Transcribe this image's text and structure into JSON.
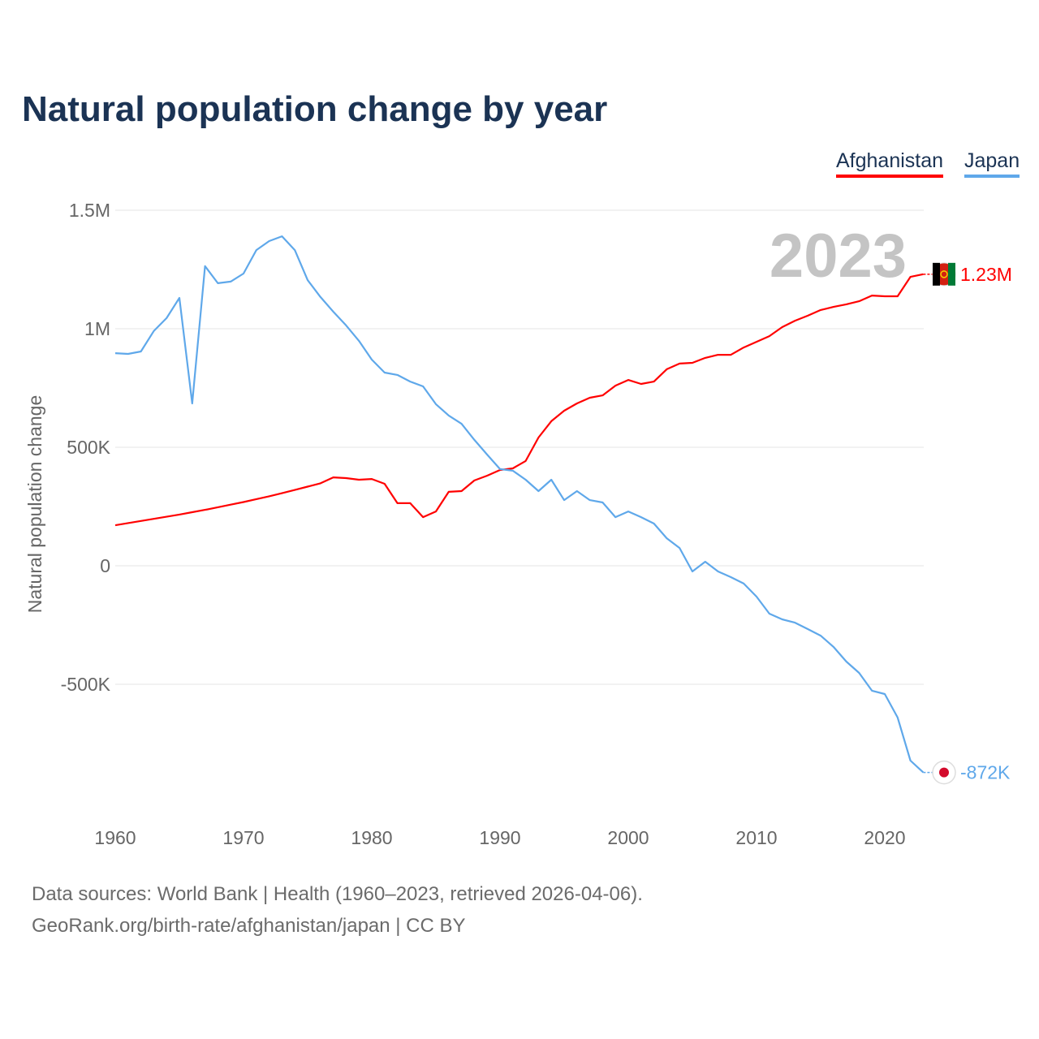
{
  "chart_data": {
    "type": "line",
    "title": "Natural population change by year",
    "xlabel": "",
    "ylabel": "Natural population change",
    "xlim": [
      1960,
      2023
    ],
    "ylim": [
      -1000000,
      1500000
    ],
    "x_ticks": [
      1960,
      1970,
      1980,
      1990,
      2000,
      2010,
      2020
    ],
    "y_ticks": [
      -500000,
      0,
      500000,
      1000000,
      1500000
    ],
    "y_tick_labels": [
      "-500K",
      "0",
      "500K",
      "1M",
      "1.5M"
    ],
    "grid": true,
    "legend_position": "top-right",
    "year_label": "2023",
    "x": [
      1960,
      1961,
      1962,
      1963,
      1964,
      1965,
      1966,
      1967,
      1968,
      1969,
      1970,
      1971,
      1972,
      1973,
      1974,
      1975,
      1976,
      1977,
      1978,
      1979,
      1980,
      1981,
      1982,
      1983,
      1984,
      1985,
      1986,
      1987,
      1988,
      1989,
      1990,
      1991,
      1992,
      1993,
      1994,
      1995,
      1996,
      1997,
      1998,
      1999,
      2000,
      2001,
      2002,
      2003,
      2004,
      2005,
      2006,
      2007,
      2008,
      2009,
      2010,
      2011,
      2012,
      2013,
      2014,
      2015,
      2016,
      2017,
      2018,
      2019,
      2020,
      2021,
      2022,
      2023
    ],
    "series": [
      {
        "name": "Afghanistan",
        "color": "#ff0000",
        "end_label": "1.23M",
        "values": [
          171000,
          180000,
          189000,
          198000,
          207000,
          216000,
          226000,
          236000,
          247000,
          258000,
          269000,
          281000,
          293000,
          306000,
          320000,
          334000,
          348000,
          373000,
          370000,
          363000,
          366000,
          346000,
          264000,
          264000,
          205000,
          229000,
          312000,
          315000,
          360000,
          380000,
          404000,
          411000,
          442000,
          541000,
          610000,
          654000,
          685000,
          709000,
          719000,
          760000,
          784000,
          767000,
          777000,
          829000,
          853000,
          856000,
          877000,
          890000,
          890000,
          921000,
          945000,
          969000,
          1007000,
          1034000,
          1055000,
          1079000,
          1092000,
          1103000,
          1116000,
          1140000,
          1137000,
          1137000,
          1219000,
          1230000
        ]
      },
      {
        "name": "Japan",
        "color": "#5fa8ea",
        "end_label": "-872K",
        "values": [
          897000,
          894000,
          904000,
          990000,
          1045000,
          1130000,
          685000,
          1264000,
          1192000,
          1199000,
          1233000,
          1332000,
          1370000,
          1390000,
          1332000,
          1205000,
          1134000,
          1072000,
          1014000,
          949000,
          870000,
          815000,
          805000,
          777000,
          757000,
          682000,
          634000,
          599000,
          531000,
          469000,
          408000,
          401000,
          363000,
          315000,
          363000,
          277000,
          315000,
          277000,
          267000,
          205000,
          229000,
          205000,
          178000,
          116000,
          75000,
          -24000,
          17000,
          -24000,
          -48000,
          -75000,
          -130000,
          -202000,
          -226000,
          -240000,
          -267000,
          -295000,
          -342000,
          -404000,
          -452000,
          -527000,
          -541000,
          -640000,
          -822000,
          -872000
        ]
      }
    ]
  },
  "footer": {
    "line1": "Data sources: World Bank | Health (1960–2023, retrieved 2026-04-06).",
    "line2": "GeoRank.org/birth-rate/afghanistan/japan | CC BY"
  }
}
